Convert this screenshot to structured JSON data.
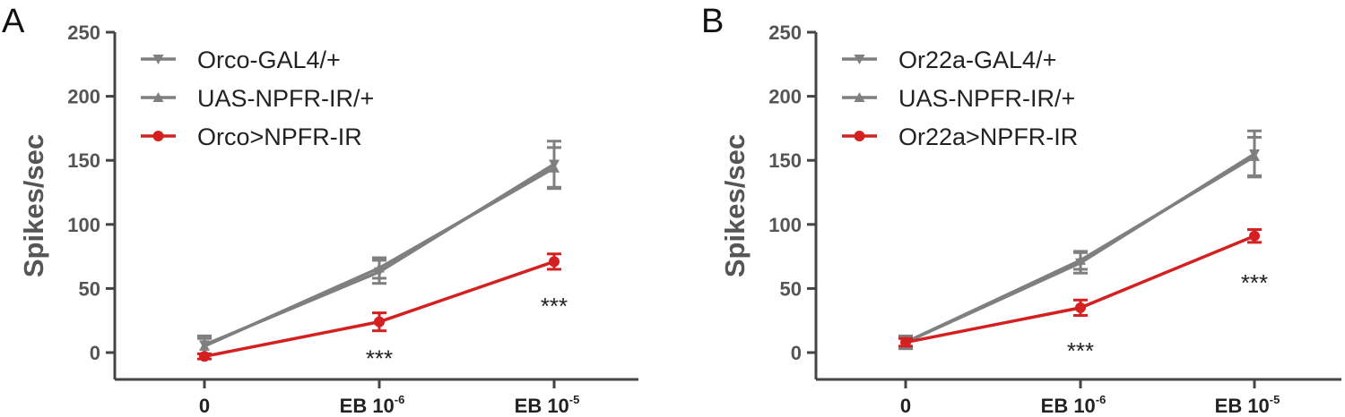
{
  "chart_data": [
    {
      "type": "line",
      "panel_label": "A",
      "categories": [
        "0",
        "EB 10",
        "EB 10"
      ],
      "category_exponents": [
        "",
        "-6",
        "-5"
      ],
      "ylabel": "Spikes/sec",
      "xlabel": "",
      "ylim": [
        0,
        250
      ],
      "yticks": [
        "0",
        "50",
        "100",
        "150",
        "200",
        "250"
      ],
      "legend_position": "top-left",
      "series": [
        {
          "name": "Orco-GAL4/+",
          "color": "#7f7f7f",
          "marker": "triangle-down",
          "values": [
            6,
            63,
            147
          ],
          "errors": [
            7,
            9,
            18
          ]
        },
        {
          "name": "UAS-NPFR-IR/+",
          "color": "#7f7f7f",
          "marker": "triangle-up",
          "values": [
            5,
            66,
            144
          ],
          "errors": [
            6,
            8,
            16
          ]
        },
        {
          "name": "Orco>NPFR-IR",
          "color": "#d42020",
          "marker": "circle",
          "values": [
            -3,
            24,
            71
          ],
          "errors": [
            2,
            7,
            6
          ]
        }
      ],
      "annotations": [
        {
          "text": "***",
          "category": 1,
          "y": -4
        },
        {
          "text": "***",
          "category": 2,
          "y": 37
        }
      ]
    },
    {
      "type": "line",
      "panel_label": "B",
      "categories": [
        "0",
        "EB 10",
        "EB 10"
      ],
      "category_exponents": [
        "",
        "-6",
        "-5"
      ],
      "ylabel": "Spikes/sec",
      "xlabel": "",
      "ylim": [
        0,
        250
      ],
      "yticks": [
        "0",
        "50",
        "100",
        "150",
        "200",
        "250"
      ],
      "legend_position": "top-left",
      "series": [
        {
          "name": "Or22a-GAL4/+",
          "color": "#7f7f7f",
          "marker": "triangle-down",
          "values": [
            8,
            70,
            155
          ],
          "errors": [
            5,
            8,
            18
          ]
        },
        {
          "name": "UAS-NPFR-IR/+",
          "color": "#7f7f7f",
          "marker": "triangle-up",
          "values": [
            8,
            72,
            153
          ],
          "errors": [
            4,
            7,
            15
          ]
        },
        {
          "name": "Or22a>NPFR-IR",
          "color": "#d42020",
          "marker": "circle",
          "values": [
            8,
            35,
            91
          ],
          "errors": [
            3,
            6,
            5
          ]
        }
      ],
      "annotations": [
        {
          "text": "***",
          "category": 1,
          "y": 2
        },
        {
          "text": "***",
          "category": 2,
          "y": 55
        }
      ]
    }
  ]
}
